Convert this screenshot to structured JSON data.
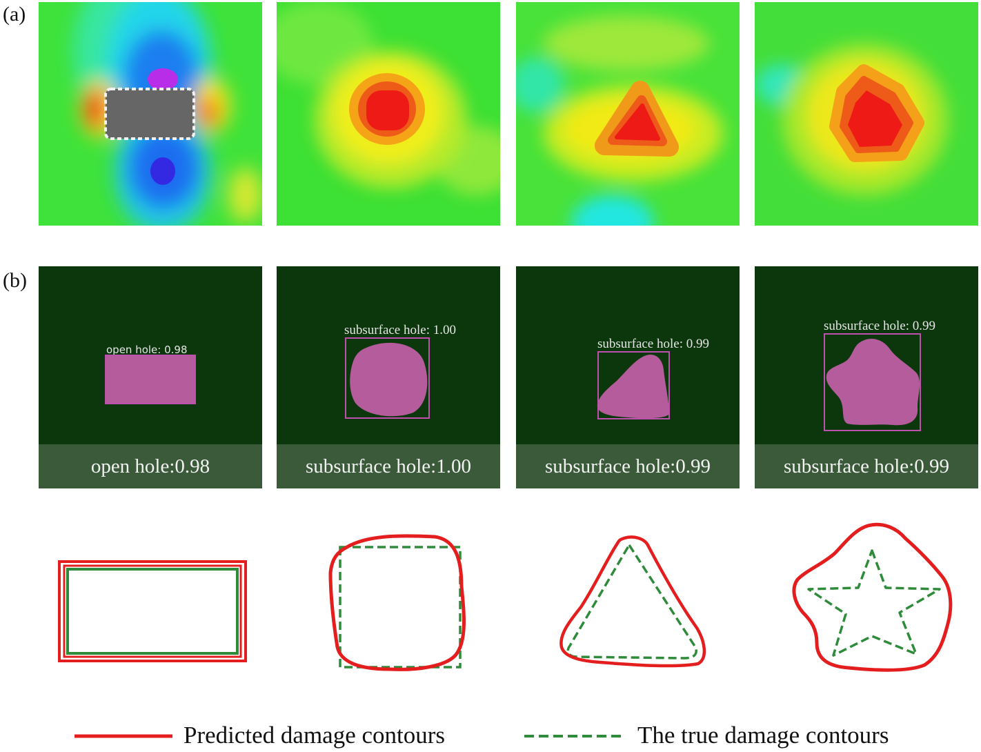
{
  "panels": {
    "a_label": "(a)",
    "b_label": "(b)"
  },
  "detections": [
    {
      "caption": "open hole:0.98",
      "box_label": "open  hole: 0.98"
    },
    {
      "caption": "subsurface hole:1.00",
      "box_label": "subsurface hole:  1.00"
    },
    {
      "caption": "subsurface hole:0.99",
      "box_label": "subsurface hole:  0.99"
    },
    {
      "caption": "subsurface hole:0.99",
      "box_label": "subsurface hole:  0.99"
    }
  ],
  "legend": {
    "predicted": "Predicted damage contours",
    "true": "The true damage contours"
  },
  "colors": {
    "predicted": "#e41e1e",
    "true": "#2e8b3a",
    "detect_bg": "#0c360c",
    "mask": "#b45c9c"
  }
}
